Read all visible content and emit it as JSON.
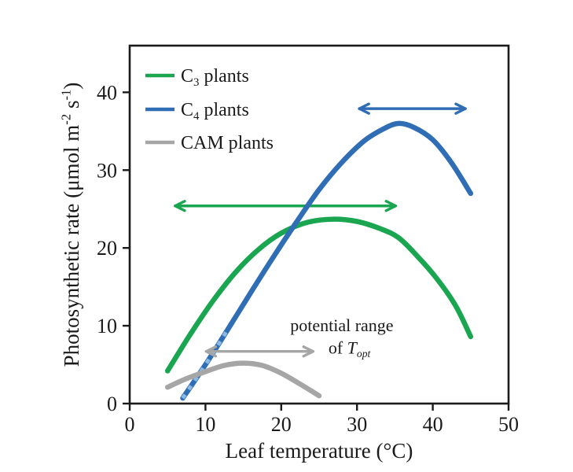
{
  "figure": {
    "background": "#ffffff",
    "axis_color": "#1a1a1a",
    "text_color": "#1a1a1a"
  },
  "chart_data": {
    "type": "line",
    "title": "",
    "xlabel": "Leaf temperature (°C)",
    "ylabel": "Photosynthetic rate (μmol m-2 s-1)",
    "xlabel_parts": [
      {
        "t": "Leaf temperature (°C)"
      }
    ],
    "ylabel_parts": [
      {
        "t": "Photosynthetic rate (μmol m"
      },
      {
        "t": "-2",
        "sup": true
      },
      {
        "t": " s"
      },
      {
        "t": "-1",
        "sup": true
      },
      {
        "t": ")"
      }
    ],
    "xlim": [
      0,
      50
    ],
    "ylim": [
      0,
      46
    ],
    "xticks": [
      0,
      10,
      20,
      30,
      40,
      50
    ],
    "yticks": [
      0,
      10,
      20,
      30,
      40
    ],
    "grid": false,
    "legend_position": "top-left",
    "series": [
      {
        "name": "C3 plants",
        "slug": "c3-plants",
        "label_parts": [
          {
            "t": "C"
          },
          {
            "t": "3",
            "sub": true
          },
          {
            "t": " plants"
          }
        ],
        "color": "#1aa650",
        "points": [
          [
            5,
            4.2
          ],
          [
            8,
            8.9
          ],
          [
            11,
            13.2
          ],
          [
            14,
            16.9
          ],
          [
            17,
            19.8
          ],
          [
            20,
            21.9
          ],
          [
            23.5,
            23.3
          ],
          [
            27,
            23.7
          ],
          [
            30,
            23.4
          ],
          [
            33,
            22.5
          ],
          [
            35.5,
            21.3
          ],
          [
            38,
            18.9
          ],
          [
            40.5,
            16.1
          ],
          [
            43,
            12.6
          ],
          [
            45,
            8.6
          ]
        ]
      },
      {
        "name": "C4 plants",
        "slug": "c4-plants",
        "label_parts": [
          {
            "t": "C"
          },
          {
            "t": "4",
            "sub": true
          },
          {
            "t": " plants"
          }
        ],
        "color": "#2f6db4",
        "points": [
          [
            7,
            0.7
          ],
          [
            10,
            5.0
          ],
          [
            13,
            9.6
          ],
          [
            16,
            14.3
          ],
          [
            19,
            18.9
          ],
          [
            22,
            23.3
          ],
          [
            25,
            27.5
          ],
          [
            28,
            31.0
          ],
          [
            31,
            33.8
          ],
          [
            33.5,
            35.3
          ],
          [
            35.5,
            36.0
          ],
          [
            37.5,
            35.5
          ],
          [
            40,
            33.9
          ],
          [
            42.5,
            30.9
          ],
          [
            45,
            27.0
          ]
        ],
        "overlay_dash": {
          "color": "#8ab7e4",
          "max_x": 13.5
        }
      },
      {
        "name": "CAM plants",
        "slug": "cam-plants",
        "label_parts": [
          {
            "t": "CAM plants"
          }
        ],
        "color": "#a6a6a6",
        "points": [
          [
            5,
            2.1
          ],
          [
            7.5,
            3.2
          ],
          [
            10,
            4.1
          ],
          [
            12.5,
            4.9
          ],
          [
            15,
            5.2
          ],
          [
            17.5,
            4.9
          ],
          [
            20,
            3.9
          ],
          [
            22.5,
            2.5
          ],
          [
            25,
            1.0
          ]
        ]
      }
    ],
    "topt_arrows": [
      {
        "series": "C3 plants",
        "slug": "c3-plants",
        "color": "#1aa650",
        "x1": 6.0,
        "x2": 35.1,
        "y": 25.4
      },
      {
        "series": "C4 plants",
        "slug": "c4-plants",
        "color": "#2f6db4",
        "x1": 30.3,
        "x2": 44.3,
        "y": 37.9
      },
      {
        "series": "CAM plants",
        "slug": "cam-plants",
        "color": "#a6a6a6",
        "x1": 10.1,
        "x2": 24.2,
        "y": 6.7
      }
    ],
    "annotation": {
      "color": "#1a1a1a",
      "lines": [
        {
          "parts": [
            {
              "t": "potential range"
            }
          ],
          "x": 28.0,
          "y": 9.3
        },
        {
          "parts": [
            {
              "t": "of "
            },
            {
              "t": "T",
              "italic": true
            },
            {
              "t": "opt",
              "sub": true,
              "italic": true
            }
          ],
          "x": 29.0,
          "y": 6.4
        }
      ]
    }
  }
}
